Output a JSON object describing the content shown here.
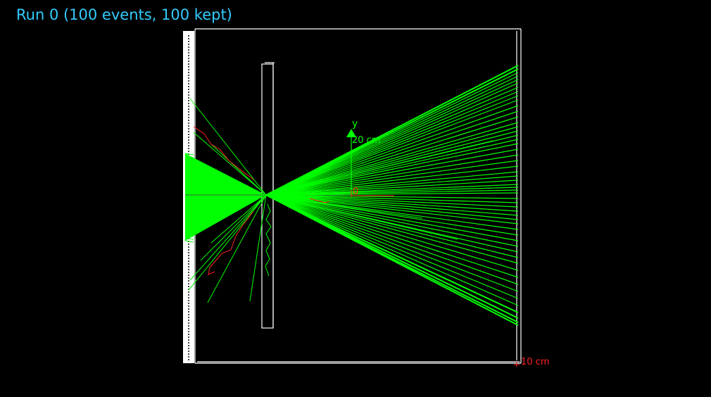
{
  "title": "Run 0 (100 events, 100 kept)",
  "axis_y_label": "y",
  "axis_y_tick": "20 cm",
  "axis_origin_tick": "0",
  "scale_label": "10 cm",
  "colors": {
    "background": "#000000",
    "title": "#33ccff",
    "geometry": "#ffffff",
    "tracks": "#00ff00",
    "secondary_tracks": "#ff2020",
    "axis_y": "#00ff00",
    "axis_x": "#ff2020"
  },
  "icons": {
    "axis_arrow": "triangle-up-icon",
    "scale_marker": "plus-icon"
  }
}
